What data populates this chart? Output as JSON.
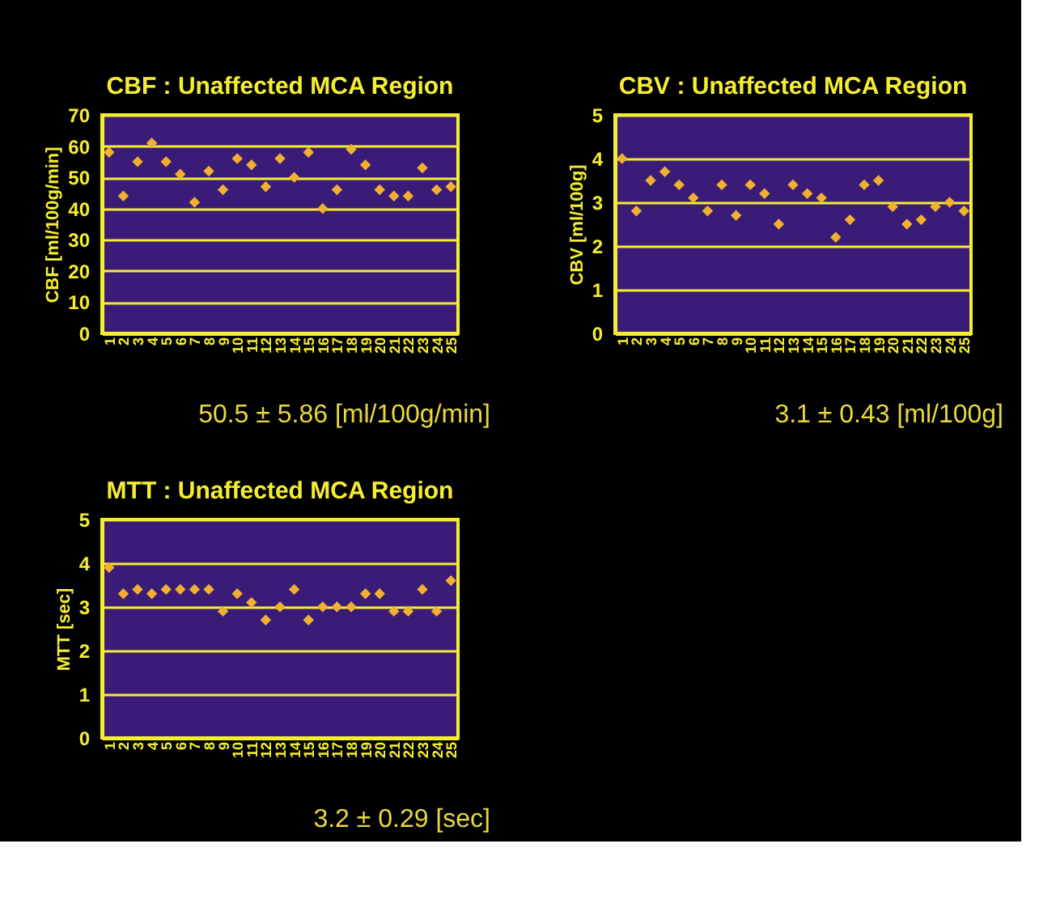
{
  "chart_data": [
    {
      "type": "scatter",
      "title": "CBF : Unaffected MCA Region",
      "ylabel": "CBF [ml/100g/min]",
      "categories": [
        "1",
        "2",
        "3",
        "4",
        "5",
        "6",
        "7",
        "8",
        "9",
        "10",
        "11",
        "12",
        "13",
        "14",
        "15",
        "16",
        "17",
        "18",
        "19",
        "20",
        "21",
        "22",
        "23",
        "24",
        "25"
      ],
      "series": [
        {
          "color": "#f0b030",
          "values": [
            58,
            44,
            55,
            61,
            55,
            51,
            42,
            52,
            46,
            56,
            54,
            47,
            56,
            50,
            58,
            40,
            46,
            59,
            54,
            46,
            44,
            44,
            53,
            46,
            47
          ]
        }
      ],
      "ylim": [
        0,
        70
      ],
      "yticks": [
        0,
        10,
        20,
        30,
        40,
        50,
        60,
        70
      ],
      "grid": "y",
      "marker": "diamond",
      "annotations": [
        "50.5 ± 5.86 [ml/100g/min]"
      ]
    },
    {
      "type": "scatter",
      "title": "CBV : Unaffected MCA Region",
      "ylabel": "CBV [ml/100g]",
      "categories": [
        "1",
        "2",
        "3",
        "4",
        "5",
        "6",
        "7",
        "8",
        "9",
        "10",
        "11",
        "12",
        "13",
        "14",
        "15",
        "16",
        "17",
        "18",
        "19",
        "20",
        "21",
        "22",
        "23",
        "24",
        "25"
      ],
      "series": [
        {
          "color": "#f0b030",
          "values": [
            4.0,
            2.8,
            3.5,
            3.7,
            3.4,
            3.1,
            2.8,
            3.4,
            2.7,
            3.4,
            3.2,
            2.5,
            3.4,
            3.2,
            3.1,
            2.2,
            2.6,
            3.4,
            3.5,
            2.9,
            2.5,
            2.6,
            2.9,
            3.0,
            2.8
          ]
        }
      ],
      "ylim": [
        0,
        5
      ],
      "yticks": [
        0,
        1,
        2,
        3,
        4,
        5
      ],
      "grid": "y",
      "marker": "diamond",
      "annotations": [
        "3.1 ± 0.43 [ml/100g]"
      ]
    },
    {
      "type": "scatter",
      "title": "MTT : Unaffected MCA Region",
      "ylabel": "MTT [sec]",
      "categories": [
        "1",
        "2",
        "3",
        "4",
        "5",
        "6",
        "7",
        "8",
        "9",
        "10",
        "11",
        "12",
        "13",
        "14",
        "15",
        "16",
        "17",
        "18",
        "19",
        "20",
        "21",
        "22",
        "23",
        "24",
        "25"
      ],
      "series": [
        {
          "color": "#f0b030",
          "values": [
            3.9,
            3.3,
            3.4,
            3.3,
            3.4,
            3.4,
            3.4,
            3.4,
            2.9,
            3.3,
            3.1,
            2.7,
            3.0,
            3.4,
            2.7,
            3.0,
            3.0,
            3.0,
            3.3,
            3.3,
            2.9,
            2.9,
            3.4,
            2.9,
            3.6
          ]
        }
      ],
      "ylim": [
        0,
        5
      ],
      "yticks": [
        0,
        1,
        2,
        3,
        4,
        5
      ],
      "grid": "y",
      "marker": "diamond",
      "annotations": [
        "3.2 ± 0.29 [sec]"
      ]
    }
  ]
}
